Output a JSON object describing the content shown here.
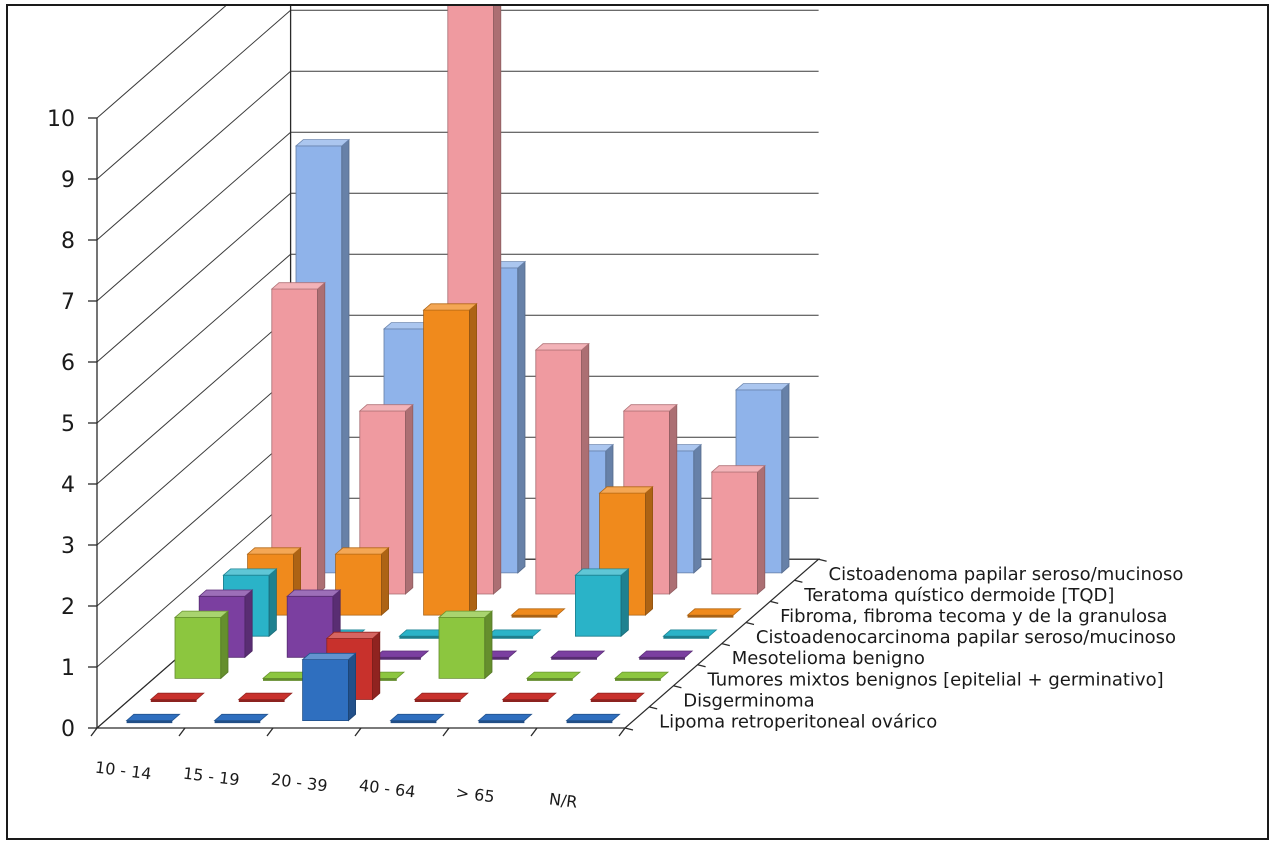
{
  "chart_data": {
    "type": "bar",
    "subtype": "3d-column",
    "title": "",
    "xlabel": "",
    "ylabel": "",
    "ylim": [
      0,
      10
    ],
    "yticks": [
      "0",
      "1",
      "2",
      "3",
      "4",
      "5",
      "6",
      "7",
      "8",
      "9",
      "10"
    ],
    "categories": [
      "10 - 14",
      "15 - 19",
      "20 - 39",
      "40 - 64",
      "> 65",
      "N/R"
    ],
    "grid": true,
    "series": [
      {
        "name": "Lipoma retroperitoneal ovárico",
        "color": "#2f6fbf",
        "values": [
          0,
          0,
          1,
          0,
          0,
          0
        ]
      },
      {
        "name": "Disgerminoma",
        "color": "#c8312c",
        "values": [
          0,
          0,
          1,
          0,
          0,
          0
        ]
      },
      {
        "name": "Tumores mixtos benignos [epitelial + germinativo]",
        "color": "#8cc63f",
        "values": [
          1,
          0,
          0,
          1,
          0,
          0
        ]
      },
      {
        "name": "Mesotelioma benigno",
        "color": "#7b3fa0",
        "values": [
          1,
          1,
          0,
          0,
          0,
          0
        ]
      },
      {
        "name": "Cistoadenocarcinoma papilar seroso/mucinoso",
        "color": "#2ab3c8",
        "values": [
          1,
          0,
          0,
          0,
          1,
          0
        ]
      },
      {
        "name": "Fibroma, fibroma tecoma y de la granulosa",
        "color": "#f08a1c",
        "values": [
          1,
          1,
          5,
          0,
          2,
          0
        ]
      },
      {
        "name": "Teratoma quístico dermoide [TQD]",
        "color": "#ef9aa0",
        "values": [
          5,
          3,
          10,
          4,
          3,
          2
        ]
      },
      {
        "name": "Cistoadenoma papilar seroso/mucinoso",
        "color": "#8fb3ea",
        "values": [
          7,
          4,
          5,
          2,
          2,
          3
        ]
      }
    ]
  }
}
